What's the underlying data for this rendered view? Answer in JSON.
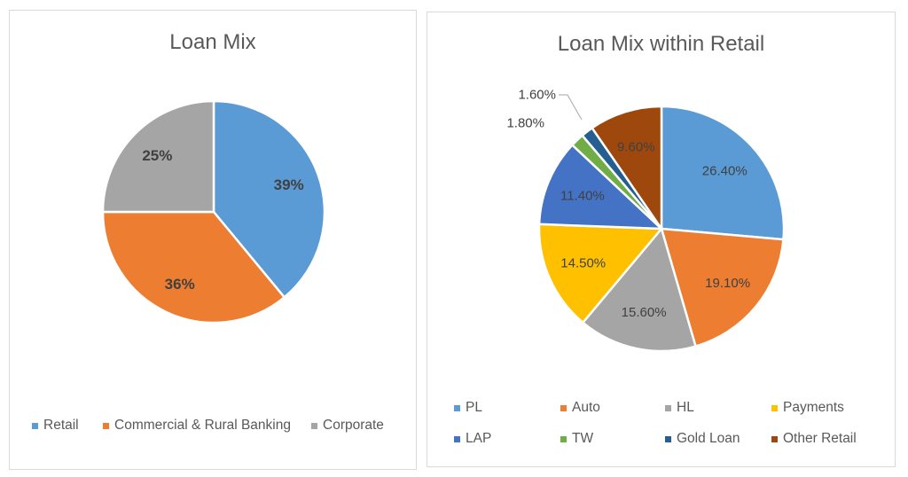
{
  "chart_data": [
    {
      "type": "pie",
      "title": "Loan Mix",
      "categories": [
        "Retail",
        "Commercial & Rural Banking",
        "Corporate"
      ],
      "values": [
        39,
        36,
        25
      ],
      "labels": [
        "39%",
        "36%",
        "25%"
      ],
      "colors": [
        "#5b9bd5",
        "#ed7d31",
        "#a5a5a5"
      ],
      "start_angle": "12 o'clock, clockwise",
      "label_style": "bold, inside",
      "legend_position": "bottom"
    },
    {
      "type": "pie",
      "title": "Loan Mix within Retail",
      "categories": [
        "PL",
        "Auto",
        "HL",
        "Payments",
        "LAP",
        "TW",
        "Gold Loan",
        "Other Retail"
      ],
      "values": [
        26.4,
        19.1,
        15.6,
        14.5,
        11.4,
        1.8,
        1.6,
        9.6
      ],
      "labels": [
        "26.40%",
        "19.10%",
        "15.60%",
        "14.50%",
        "11.40%",
        "1.80%",
        "1.60%",
        "9.60%"
      ],
      "colors": [
        "#5b9bd5",
        "#ed7d31",
        "#a5a5a5",
        "#ffc000",
        "#4472c4",
        "#70ad47",
        "#255e91",
        "#9e480e"
      ],
      "start_angle": "12 o'clock, clockwise",
      "label_style": "inside; TW and Gold Loan outside with leader line",
      "legend_position": "bottom (2 rows x 4 columns)"
    }
  ],
  "left_chart": {
    "title": "Loan Mix",
    "legend": [
      "Retail",
      "Commercial & Rural Banking",
      "Corporate"
    ]
  },
  "right_chart": {
    "title": "Loan Mix within Retail",
    "legend": [
      "PL",
      "Auto",
      "HL",
      "Payments",
      "LAP",
      "TW",
      "Gold Loan",
      "Other Retail"
    ]
  }
}
